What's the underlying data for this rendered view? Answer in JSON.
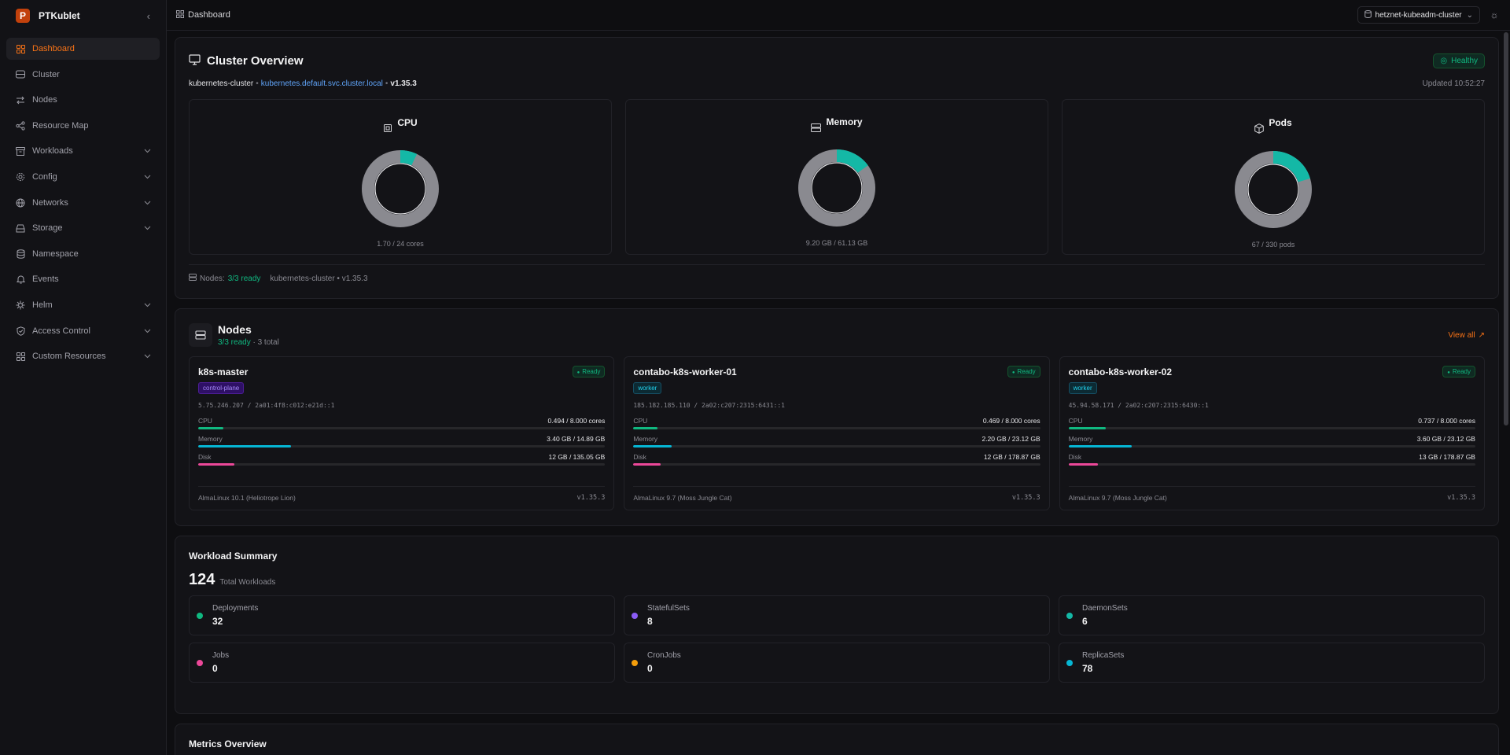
{
  "app": {
    "name": "PTKublet"
  },
  "sidebar": {
    "items": [
      {
        "label": "Dashboard",
        "icon": "dashboard-icon",
        "active": true,
        "expandable": false
      },
      {
        "label": "Cluster",
        "icon": "cluster-icon",
        "expandable": false
      },
      {
        "label": "Nodes",
        "icon": "nodes-icon",
        "expandable": false
      },
      {
        "label": "Resource Map",
        "icon": "share-icon",
        "expandable": false
      },
      {
        "label": "Workloads",
        "icon": "workloads-icon",
        "expandable": true
      },
      {
        "label": "Config",
        "icon": "gear-icon",
        "expandable": true
      },
      {
        "label": "Networks",
        "icon": "globe-icon",
        "expandable": true
      },
      {
        "label": "Storage",
        "icon": "storage-icon",
        "expandable": true
      },
      {
        "label": "Namespace",
        "icon": "database-icon",
        "expandable": false
      },
      {
        "label": "Events",
        "icon": "bell-icon",
        "expandable": false
      },
      {
        "label": "Helm",
        "icon": "helm-icon",
        "expandable": true
      },
      {
        "label": "Access Control",
        "icon": "shield-icon",
        "expandable": true
      },
      {
        "label": "Custom Resources",
        "icon": "grid-icon",
        "expandable": true
      }
    ]
  },
  "topbar": {
    "breadcrumb": "Dashboard",
    "cluster": "hetznet-kubeadm-cluster"
  },
  "overview": {
    "title": "Cluster Overview",
    "status": "Healthy",
    "host": "kubernetes-cluster",
    "endpoint": "kubernetes.default.svc.cluster.local",
    "version": "v1.35.3",
    "updated": "Updated 10:52:27",
    "gauges": [
      {
        "label": "CPU",
        "icon": "cpu-icon",
        "value_text": "1.70 / 24 cores",
        "fraction": 0.071
      },
      {
        "label": "Memory",
        "icon": "memory-icon",
        "value_text": "9.20 GB / 61.13 GB",
        "fraction": 0.15
      },
      {
        "label": "Pods",
        "icon": "box-icon",
        "value_text": "67 / 330 pods",
        "fraction": 0.203
      }
    ],
    "footer": {
      "nodes_label": "Nodes:",
      "nodes_ready": "3/3 ready",
      "cluster_info": "kubernetes-cluster • v1.35.3"
    }
  },
  "nodes": {
    "title": "Nodes",
    "ready": "3/3 ready",
    "total": "· 3 total",
    "view_all": "View all",
    "list": [
      {
        "name": "k8s-master",
        "status": "Ready",
        "role": "control-plane",
        "role_type": "cp",
        "ips": "5.75.246.207 / 2a01:4f8:c012:e21d::1",
        "cpu_label": "CPU",
        "cpu": "0.494 / 8.000 cores",
        "cpu_frac": 0.062,
        "mem_label": "Memory",
        "mem": "3.40 GB / 14.89 GB",
        "mem_frac": 0.228,
        "disk_label": "Disk",
        "disk": "12 GB / 135.05 GB",
        "disk_frac": 0.089,
        "os": "AlmaLinux 10.1 (Heliotrope Lion)",
        "kubelet": "v1.35.3"
      },
      {
        "name": "contabo-k8s-worker-01",
        "status": "Ready",
        "role": "worker",
        "role_type": "wk",
        "ips": "185.182.185.110 / 2a02:c207:2315:6431::1",
        "cpu_label": "CPU",
        "cpu": "0.469 / 8.000 cores",
        "cpu_frac": 0.059,
        "mem_label": "Memory",
        "mem": "2.20 GB / 23.12 GB",
        "mem_frac": 0.095,
        "disk_label": "Disk",
        "disk": "12 GB / 178.87 GB",
        "disk_frac": 0.067,
        "os": "AlmaLinux 9.7 (Moss Jungle Cat)",
        "kubelet": "v1.35.3"
      },
      {
        "name": "contabo-k8s-worker-02",
        "status": "Ready",
        "role": "worker",
        "role_type": "wk",
        "ips": "45.94.58.171 / 2a02:c207:2315:6430::1",
        "cpu_label": "CPU",
        "cpu": "0.737 / 8.000 cores",
        "cpu_frac": 0.092,
        "mem_label": "Memory",
        "mem": "3.60 GB / 23.12 GB",
        "mem_frac": 0.156,
        "disk_label": "Disk",
        "disk": "13 GB / 178.87 GB",
        "disk_frac": 0.073,
        "os": "AlmaLinux 9.7 (Moss Jungle Cat)",
        "kubelet": "v1.35.3"
      }
    ]
  },
  "workload": {
    "title": "Workload Summary",
    "total": "124",
    "total_label": "Total Workloads",
    "items": [
      {
        "label": "Deployments",
        "count": "32",
        "color": "#10b981"
      },
      {
        "label": "StatefulSets",
        "count": "8",
        "color": "#8b5cf6"
      },
      {
        "label": "DaemonSets",
        "count": "6",
        "color": "#14b8a6"
      },
      {
        "label": "Jobs",
        "count": "0",
        "color": "#ec4899"
      },
      {
        "label": "CronJobs",
        "count": "0",
        "color": "#f59e0b"
      },
      {
        "label": "ReplicaSets",
        "count": "78",
        "color": "#06b6d4"
      }
    ]
  },
  "metrics": {
    "title": "Metrics Overview"
  },
  "colors": {
    "accent": "#f97316",
    "healthy": "#10b981",
    "gauge_fill": "#14b8a6",
    "gauge_track": "#8a8a90",
    "cpu_bar": "#10b981",
    "mem_bar": "#06b6d4",
    "disk_bar": "#ec4899"
  }
}
